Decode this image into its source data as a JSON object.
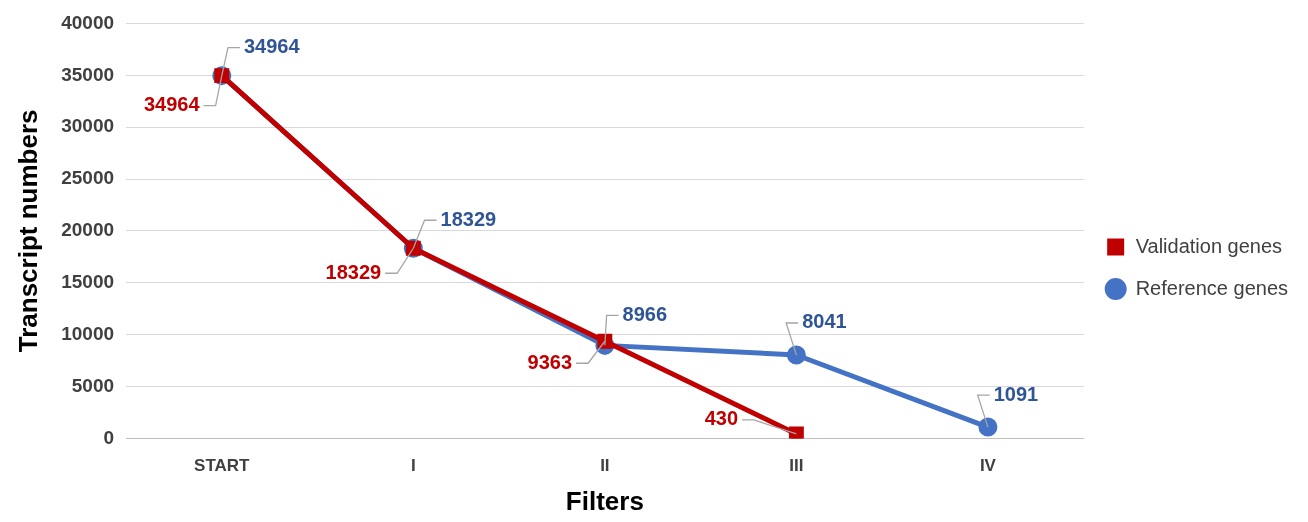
{
  "chart_data": {
    "type": "line",
    "xlabel": "Filters",
    "ylabel": "Transcript numbers",
    "categories": [
      "START",
      "I",
      "II",
      "III",
      "IV"
    ],
    "series": [
      {
        "name": "Validation genes",
        "color": "#c00000",
        "marker": "square",
        "values": [
          34964,
          18329,
          9363,
          430,
          null
        ]
      },
      {
        "name": "Reference genes",
        "color": "#4472c4",
        "marker": "circle",
        "values": [
          34964,
          18329,
          8966,
          8041,
          1091
        ]
      }
    ],
    "ylim": [
      0,
      40000
    ],
    "yticks": [
      0,
      5000,
      10000,
      15000,
      20000,
      25000,
      30000,
      35000,
      40000
    ],
    "grid": "y",
    "legend": "right",
    "data_labels": true
  }
}
